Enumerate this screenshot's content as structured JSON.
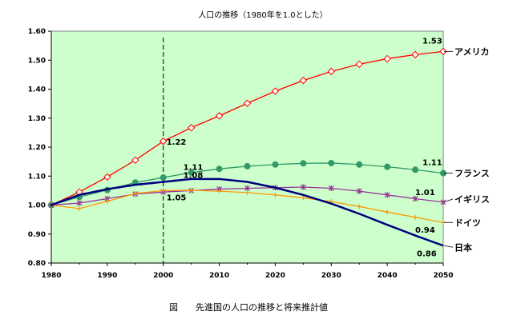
{
  "chart_data": {
    "type": "line",
    "title": "人口の推移（1980年を1.0とした）",
    "caption": "図　　先進国の人口の推移と将来推計値",
    "xlabel": "",
    "ylabel": "",
    "xlim": [
      1980,
      2050
    ],
    "ylim": [
      0.8,
      1.6
    ],
    "x_ticks": [
      "1980",
      "1990",
      "2000",
      "2010",
      "2020",
      "2030",
      "2040",
      "2050"
    ],
    "y_ticks": [
      "0.80",
      "0.90",
      "1.00",
      "1.10",
      "1.20",
      "1.30",
      "1.40",
      "1.50",
      "1.60"
    ],
    "reference_line_x": 2000,
    "grid": false,
    "background_color": "#ccffcc",
    "series": [
      {
        "name": "アメリカ",
        "color": "#ff0000",
        "marker": "diamond",
        "x": [
          1980,
          1985,
          1990,
          1995,
          2000,
          2005,
          2010,
          2015,
          2020,
          2025,
          2030,
          2035,
          2040,
          2045,
          2050
        ],
        "values": [
          1.0,
          1.045,
          1.097,
          1.155,
          1.22,
          1.267,
          1.308,
          1.351,
          1.393,
          1.43,
          1.461,
          1.486,
          1.505,
          1.519,
          1.53
        ],
        "labels": [
          {
            "x": 2000,
            "text": "1.22"
          },
          {
            "x": 2050,
            "text": "1.53"
          }
        ]
      },
      {
        "name": "フランス",
        "color": "#339966",
        "marker": "circle",
        "x": [
          1980,
          1985,
          1990,
          1995,
          2000,
          2005,
          2010,
          2015,
          2020,
          2025,
          2030,
          2035,
          2040,
          2045,
          2050
        ],
        "values": [
          1.0,
          1.028,
          1.052,
          1.078,
          1.095,
          1.112,
          1.125,
          1.134,
          1.14,
          1.144,
          1.145,
          1.14,
          1.132,
          1.122,
          1.11
        ],
        "labels": [
          {
            "x": 2003,
            "text": "1.11"
          },
          {
            "x": 2050,
            "text": "1.11"
          }
        ]
      },
      {
        "name": "イギリス",
        "color": "#993399",
        "marker": "star",
        "x": [
          1980,
          1985,
          1990,
          1995,
          2000,
          2005,
          2010,
          2015,
          2020,
          2025,
          2030,
          2035,
          2040,
          2045,
          2050
        ],
        "values": [
          1.0,
          1.007,
          1.022,
          1.038,
          1.045,
          1.05,
          1.055,
          1.058,
          1.06,
          1.062,
          1.058,
          1.048,
          1.035,
          1.022,
          1.01
        ],
        "labels": [
          {
            "x": 2049,
            "text": "1.01"
          }
        ]
      },
      {
        "name": "ドイツ",
        "color": "#ff9900",
        "marker": "plus",
        "x": [
          1980,
          1985,
          1990,
          1995,
          2000,
          2005,
          2010,
          2015,
          2020,
          2025,
          2030,
          2035,
          2040,
          2045,
          2050
        ],
        "values": [
          1.0,
          0.988,
          1.013,
          1.04,
          1.05,
          1.051,
          1.048,
          1.043,
          1.035,
          1.025,
          1.012,
          0.995,
          0.976,
          0.958,
          0.94
        ],
        "labels": [
          {
            "x": 2049,
            "text": "0.94"
          },
          {
            "x": 2000,
            "text": "1.05"
          }
        ]
      },
      {
        "name": "日本",
        "color": "#000080",
        "marker": "none",
        "x": [
          1980,
          1985,
          1990,
          1995,
          2000,
          2005,
          2010,
          2015,
          2020,
          2025,
          2030,
          2035,
          2040,
          2045,
          2050
        ],
        "values": [
          1.0,
          1.035,
          1.055,
          1.07,
          1.08,
          1.09,
          1.09,
          1.08,
          1.06,
          1.035,
          1.005,
          0.97,
          0.932,
          0.895,
          0.86
        ],
        "labels": [
          {
            "x": 2003,
            "text": "1.08"
          },
          {
            "x": 2049,
            "text": "0.86"
          }
        ]
      }
    ]
  }
}
